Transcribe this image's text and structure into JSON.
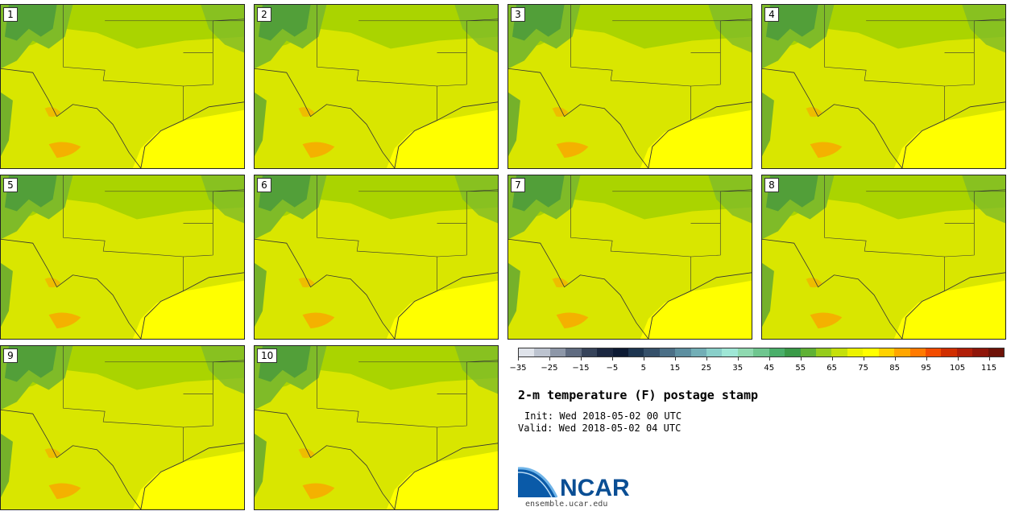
{
  "panels": [
    {
      "label": "1"
    },
    {
      "label": "2"
    },
    {
      "label": "3"
    },
    {
      "label": "4"
    },
    {
      "label": "5"
    },
    {
      "label": "6"
    },
    {
      "label": "7"
    },
    {
      "label": "8"
    },
    {
      "label": "9"
    },
    {
      "label": "10"
    }
  ],
  "colorbar": {
    "colors": [
      "#dfe3ea",
      "#bcc3cf",
      "#8d97a8",
      "#5f6b80",
      "#36435a",
      "#1b2740",
      "#0c1a33",
      "#1d3550",
      "#35506a",
      "#4b6f86",
      "#5d8fa0",
      "#72aeb6",
      "#89cfc9",
      "#9fe7d6",
      "#8fd9b0",
      "#6fc68f",
      "#4aaf6a",
      "#3a9a48",
      "#5fb135",
      "#96cc1c",
      "#c4e00a",
      "#ecf200",
      "#ffff00",
      "#ffd200",
      "#ffa600",
      "#ff7a00",
      "#f24c00",
      "#d02e00",
      "#b01e08",
      "#8f160a",
      "#6e1208"
    ],
    "tick_labels": [
      "−35",
      "−25",
      "−15",
      "−5",
      "5",
      "15",
      "25",
      "35",
      "45",
      "55",
      "65",
      "75",
      "85",
      "95",
      "105",
      "115"
    ]
  },
  "title": "2-m temperature (F) postage stamp",
  "init": "Init: Wed 2018-05-02 00 UTC",
  "valid": "Valid: Wed 2018-05-02 04 UTC",
  "logo_text": "NCAR",
  "site": "ensemble.ucar.edu",
  "map_colors": {
    "dark_green": "#4a9a3c",
    "mid_green": "#7fbb28",
    "light_green": "#aad400",
    "yellow_green": "#d9e600",
    "yellow": "#ffff00",
    "orange": "#ff9a00",
    "boundary": "#333333"
  }
}
